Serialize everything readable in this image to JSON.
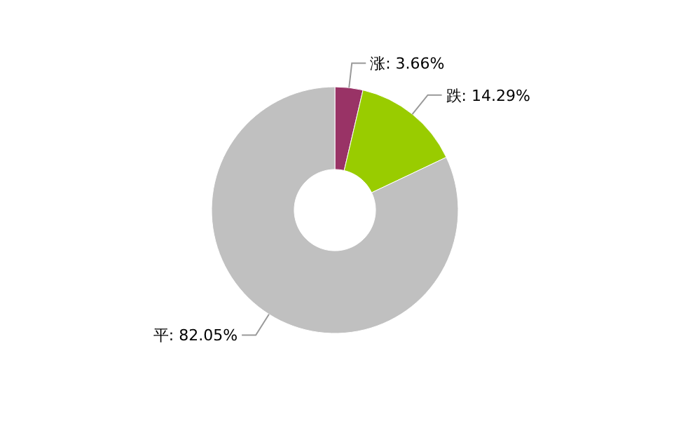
{
  "chart_data": {
    "type": "donut",
    "categories": [
      "涨",
      "跌",
      "平"
    ],
    "values": [
      3.66,
      14.29,
      82.05
    ],
    "colors": [
      "#993366",
      "#99cc00",
      "#c0c0c0"
    ],
    "value_labels": [
      ": 3.66%",
      ": 14.29%",
      ": 82.05%"
    ]
  }
}
